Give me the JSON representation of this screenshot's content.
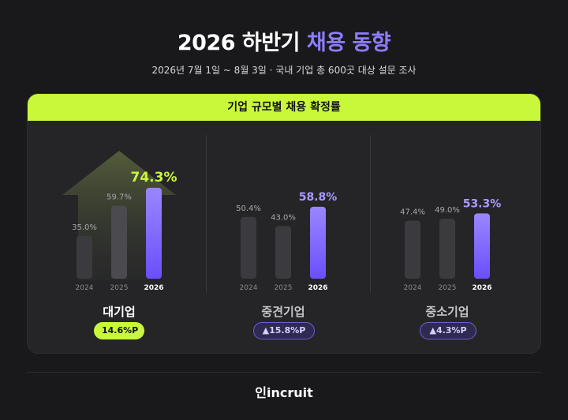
{
  "title": {
    "main": "2026 하반기",
    "accent": "채용 동향"
  },
  "subtitle": "2026년 7월 1일 ~ 8월 3일 · 국내 기업 총 600곳 대상 설문 조사",
  "card_title": "기업 규모별 채용 확정률",
  "colors": {
    "accent_green": "#c9f73a",
    "accent_purple": "#8d7dff",
    "bar_gray": "#3b3b3f",
    "bar_highlight": "#6a4ffb"
  },
  "chart_data": {
    "type": "bar",
    "title": "기업 규모별 채용 확정률",
    "categories": [
      "2024",
      "2025",
      "2026"
    ],
    "unit": "%",
    "groups": [
      {
        "name": "대기업",
        "values": [
          35.0,
          59.7,
          74.3
        ],
        "labels": [
          "35.0%",
          "59.7%",
          "74.3%"
        ],
        "change": "14.6%P"
      },
      {
        "name": "중견기업",
        "values": [
          50.4,
          43.0,
          58.8
        ],
        "labels": [
          "50.4%",
          "43.0%",
          "58.8%"
        ],
        "change": "▲15.8%P"
      },
      {
        "name": "중소기업",
        "values": [
          47.4,
          49.0,
          53.3
        ],
        "labels": [
          "47.4%",
          "49.0%",
          "53.3%"
        ],
        "change": "▲4.3%P"
      }
    ]
  },
  "footer": {
    "logo": "인incruit"
  }
}
